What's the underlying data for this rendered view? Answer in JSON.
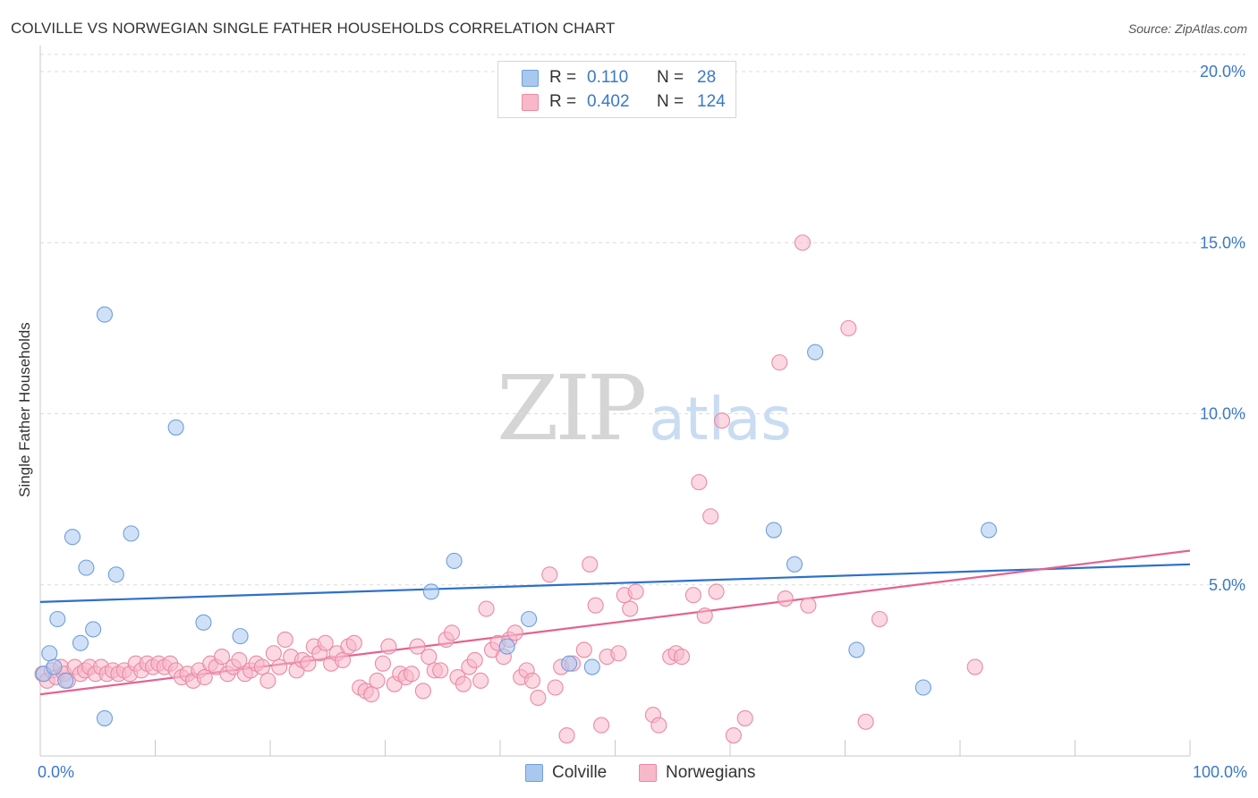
{
  "header": {
    "title": "COLVILLE VS NORWEGIAN SINGLE FATHER HOUSEHOLDS CORRELATION CHART",
    "source": "Source: ZipAtlas.com"
  },
  "watermark": {
    "zip": "ZIP",
    "atlas": "atlas"
  },
  "legend": {
    "rows": [
      {
        "r_label": "R =",
        "r_value": "0.110",
        "n_label": "N =",
        "n_value": "28",
        "color": "#a9c8f0",
        "border": "#6e9fdc"
      },
      {
        "r_label": "R =",
        "r_value": "0.402",
        "n_label": "N =",
        "n_value": "124",
        "color": "#f7b8ca",
        "border": "#e98aa6"
      }
    ]
  },
  "bottom_legend": {
    "colville": "Colville",
    "norwegians": "Norwegians"
  },
  "colors": {
    "colville_fill": "#a9c8f0",
    "colville_stroke": "#6e9fdc",
    "colville_line": "#2e6fcc",
    "norwegians_fill": "#f7b8ca",
    "norwegians_stroke": "#e98aa6",
    "norwegians_line": "#e4638f",
    "tick_label": "#3a78c9"
  },
  "chart_data": {
    "type": "scatter",
    "title": "COLVILLE VS NORWEGIAN SINGLE FATHER HOUSEHOLDS CORRELATION CHART",
    "xlabel": "",
    "ylabel": "Single Father Households",
    "xlim": [
      0,
      100
    ],
    "ylim": [
      0,
      20.5
    ],
    "x_tick_labels": [
      "0.0%",
      "100.0%"
    ],
    "y_ticks": [
      5,
      10,
      15,
      20
    ],
    "y_tick_labels": [
      "5.0%",
      "10.0%",
      "15.0%",
      "20.0%"
    ],
    "grid": true,
    "legend_position": "top-center",
    "series": [
      {
        "name": "Colville",
        "r": 0.11,
        "n": 28,
        "trend": {
          "x": [
            0,
            100
          ],
          "y": [
            4.5,
            5.6
          ]
        },
        "points": [
          [
            0.3,
            2.4
          ],
          [
            0.8,
            3.0
          ],
          [
            1.2,
            2.6
          ],
          [
            1.5,
            4.0
          ],
          [
            2.2,
            2.2
          ],
          [
            2.8,
            6.4
          ],
          [
            3.5,
            3.3
          ],
          [
            4.0,
            5.5
          ],
          [
            4.6,
            3.7
          ],
          [
            5.6,
            1.1
          ],
          [
            5.6,
            12.9
          ],
          [
            6.6,
            5.3
          ],
          [
            7.9,
            6.5
          ],
          [
            11.8,
            9.6
          ],
          [
            14.2,
            3.9
          ],
          [
            17.4,
            3.5
          ],
          [
            34.0,
            4.8
          ],
          [
            36.0,
            5.7
          ],
          [
            40.6,
            3.2
          ],
          [
            42.5,
            4.0
          ],
          [
            46.0,
            2.7
          ],
          [
            48.0,
            2.6
          ],
          [
            63.8,
            6.6
          ],
          [
            65.6,
            5.6
          ],
          [
            67.4,
            11.8
          ],
          [
            71.0,
            3.1
          ],
          [
            76.8,
            2.0
          ],
          [
            82.5,
            6.6
          ]
        ]
      },
      {
        "name": "Norwegians",
        "r": 0.402,
        "n": 124,
        "trend": {
          "x": [
            0,
            100
          ],
          "y": [
            1.8,
            6.0
          ]
        },
        "points": [
          [
            0.2,
            2.4
          ],
          [
            0.6,
            2.2
          ],
          [
            1.0,
            2.5
          ],
          [
            1.4,
            2.3
          ],
          [
            1.8,
            2.6
          ],
          [
            2.1,
            2.4
          ],
          [
            2.4,
            2.2
          ],
          [
            3.0,
            2.6
          ],
          [
            3.5,
            2.4
          ],
          [
            3.9,
            2.5
          ],
          [
            4.3,
            2.6
          ],
          [
            4.8,
            2.4
          ],
          [
            5.3,
            2.6
          ],
          [
            5.8,
            2.4
          ],
          [
            6.3,
            2.5
          ],
          [
            6.8,
            2.4
          ],
          [
            7.3,
            2.5
          ],
          [
            7.8,
            2.4
          ],
          [
            8.3,
            2.7
          ],
          [
            8.8,
            2.5
          ],
          [
            9.3,
            2.7
          ],
          [
            9.8,
            2.6
          ],
          [
            10.3,
            2.7
          ],
          [
            10.8,
            2.6
          ],
          [
            11.3,
            2.7
          ],
          [
            11.8,
            2.5
          ],
          [
            12.3,
            2.3
          ],
          [
            12.8,
            2.4
          ],
          [
            13.3,
            2.2
          ],
          [
            13.8,
            2.5
          ],
          [
            14.3,
            2.3
          ],
          [
            14.8,
            2.7
          ],
          [
            15.3,
            2.6
          ],
          [
            15.8,
            2.9
          ],
          [
            16.3,
            2.4
          ],
          [
            16.8,
            2.6
          ],
          [
            17.3,
            2.8
          ],
          [
            17.8,
            2.4
          ],
          [
            18.3,
            2.5
          ],
          [
            18.8,
            2.7
          ],
          [
            19.3,
            2.6
          ],
          [
            19.8,
            2.2
          ],
          [
            20.3,
            3.0
          ],
          [
            20.8,
            2.6
          ],
          [
            21.3,
            3.4
          ],
          [
            21.8,
            2.9
          ],
          [
            22.3,
            2.5
          ],
          [
            22.8,
            2.8
          ],
          [
            23.3,
            2.7
          ],
          [
            23.8,
            3.2
          ],
          [
            24.3,
            3.0
          ],
          [
            24.8,
            3.3
          ],
          [
            25.3,
            2.7
          ],
          [
            25.8,
            3.0
          ],
          [
            26.3,
            2.8
          ],
          [
            26.8,
            3.2
          ],
          [
            27.3,
            3.3
          ],
          [
            27.8,
            2.0
          ],
          [
            28.3,
            1.9
          ],
          [
            28.8,
            1.8
          ],
          [
            29.3,
            2.2
          ],
          [
            29.8,
            2.7
          ],
          [
            30.3,
            3.2
          ],
          [
            30.8,
            2.1
          ],
          [
            31.3,
            2.4
          ],
          [
            31.8,
            2.3
          ],
          [
            32.3,
            2.4
          ],
          [
            32.8,
            3.2
          ],
          [
            33.3,
            1.9
          ],
          [
            33.8,
            2.9
          ],
          [
            34.3,
            2.5
          ],
          [
            34.8,
            2.5
          ],
          [
            35.3,
            3.4
          ],
          [
            35.8,
            3.6
          ],
          [
            36.3,
            2.3
          ],
          [
            36.8,
            2.1
          ],
          [
            37.3,
            2.6
          ],
          [
            37.8,
            2.8
          ],
          [
            38.3,
            2.2
          ],
          [
            38.8,
            4.3
          ],
          [
            39.3,
            3.1
          ],
          [
            39.8,
            3.3
          ],
          [
            40.3,
            2.9
          ],
          [
            40.8,
            3.4
          ],
          [
            41.3,
            3.6
          ],
          [
            41.8,
            2.3
          ],
          [
            42.3,
            2.5
          ],
          [
            42.8,
            2.2
          ],
          [
            43.3,
            1.7
          ],
          [
            44.3,
            5.3
          ],
          [
            44.8,
            2.0
          ],
          [
            45.3,
            2.6
          ],
          [
            45.8,
            0.6
          ],
          [
            46.3,
            2.7
          ],
          [
            47.3,
            3.1
          ],
          [
            47.8,
            5.6
          ],
          [
            48.3,
            4.4
          ],
          [
            48.8,
            0.9
          ],
          [
            49.3,
            2.9
          ],
          [
            50.3,
            3.0
          ],
          [
            50.8,
            4.7
          ],
          [
            51.3,
            4.3
          ],
          [
            51.8,
            4.8
          ],
          [
            53.3,
            1.2
          ],
          [
            53.8,
            0.9
          ],
          [
            54.8,
            2.9
          ],
          [
            55.3,
            3.0
          ],
          [
            55.8,
            2.9
          ],
          [
            56.8,
            4.7
          ],
          [
            57.3,
            8.0
          ],
          [
            57.8,
            4.1
          ],
          [
            58.3,
            7.0
          ],
          [
            58.8,
            4.8
          ],
          [
            59.3,
            9.8
          ],
          [
            60.3,
            0.6
          ],
          [
            61.3,
            1.1
          ],
          [
            64.3,
            11.5
          ],
          [
            64.8,
            4.6
          ],
          [
            66.3,
            15.0
          ],
          [
            66.8,
            4.4
          ],
          [
            70.3,
            12.5
          ],
          [
            71.8,
            1.0
          ],
          [
            81.3,
            2.6
          ],
          [
            73.0,
            4.0
          ]
        ]
      }
    ]
  }
}
